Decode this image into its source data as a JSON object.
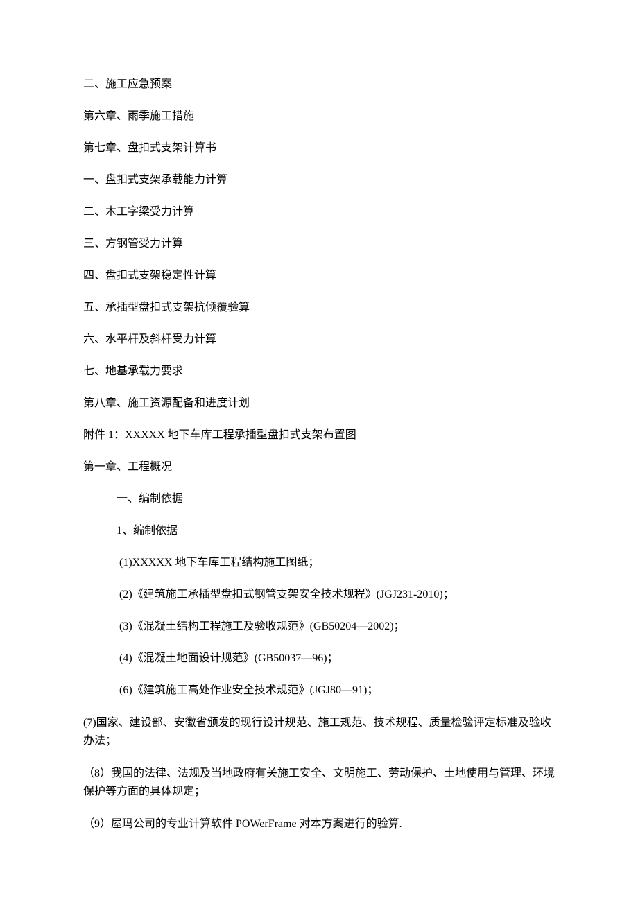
{
  "toc": {
    "item1": "二、施工应急预案",
    "item2": "第六章、雨季施工措施",
    "item3": "第七章、盘扣式支架计算书",
    "item4": "一、盘扣式支架承载能力计算",
    "item5": "二、木工字梁受力计算",
    "item6": "三、方钢管受力计算",
    "item7": "四、盘扣式支架稳定性计算",
    "item8": "五、承插型盘扣式支架抗倾覆验算",
    "item9": "六、水平杆及斜杆受力计算",
    "item10": "七、地基承载力要求",
    "item11": "第八章、施工资源配备和进度计划",
    "item12": "附件 1：XXXXX 地下车库工程承插型盘扣式支架布置图"
  },
  "chapter1": {
    "title": "第一章、工程概况",
    "section1_title": "一、编制依据",
    "section1_sub": "1、编制依据",
    "basis1": "(1)XXXXX 地下车库工程结构施工图纸；",
    "basis2": "(2)《建筑施工承插型盘扣式钢管支架安全技术规程》(JGJ231-2010)；",
    "basis3": "(3)《混凝土结构工程施工及验收规范》(GB50204—2002)；",
    "basis4": "(4)《混凝土地面设计规范》(GB50037—96)；",
    "basis6": "(6)《建筑施工高处作业安全技术规范》(JGJ80—91)；",
    "basis7": "(7)国家、建设部、安徽省颁发的现行设计规范、施工规范、技术规程、质量检验评定标准及验收办法；",
    "basis8": "（8）我国的法律、法规及当地政府有关施工安全、文明施工、劳动保护、土地使用与管理、环境保护等方面的具体规定；",
    "basis9": "（9）屋玛公司的专业计算软件 POWerFrame 对本方案进行的验算."
  }
}
